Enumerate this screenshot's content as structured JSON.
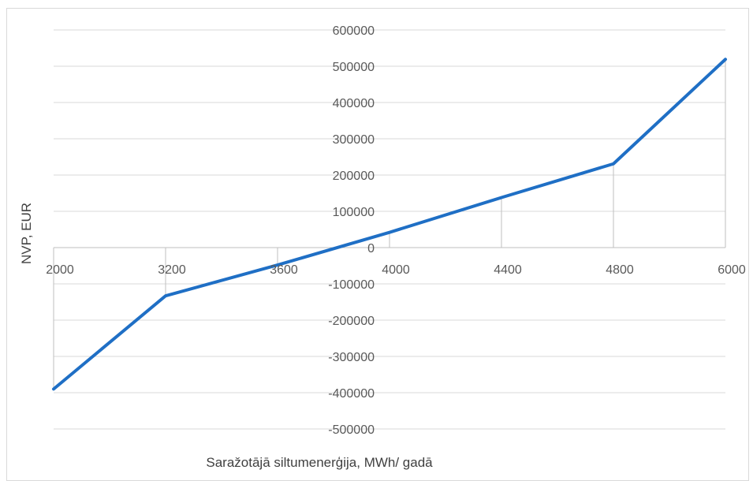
{
  "chart_data": {
    "type": "line",
    "title": "",
    "xlabel": "Saražotājā siltumenerģija, MWh/ gadā",
    "ylabel": "NVP, EUR",
    "categories": [
      "2000",
      "3200",
      "3600",
      "4000",
      "4400",
      "4800",
      "6000"
    ],
    "series": [
      {
        "values": [
          -390000,
          -133000,
          -48000,
          42000,
          138000,
          231000,
          519000
        ],
        "color": "#1f6fc5"
      }
    ],
    "ylim": [
      -500000,
      600000
    ],
    "yticks": [
      600000,
      500000,
      400000,
      300000,
      200000,
      100000,
      0,
      -100000,
      -200000,
      -300000,
      -400000,
      -500000
    ],
    "ytick_labels": [
      "600000",
      "500000",
      "400000",
      "300000",
      "200000",
      "100000",
      "0",
      "-100000",
      "-200000",
      "-300000",
      "-400000",
      "-500000"
    ],
    "grid": true,
    "legend": "none",
    "drop_lines": true,
    "colors": {
      "line": "#1f6fc5",
      "grid": "#d9d9d9",
      "axis": "#bfbfbf",
      "text": "#595959"
    }
  }
}
